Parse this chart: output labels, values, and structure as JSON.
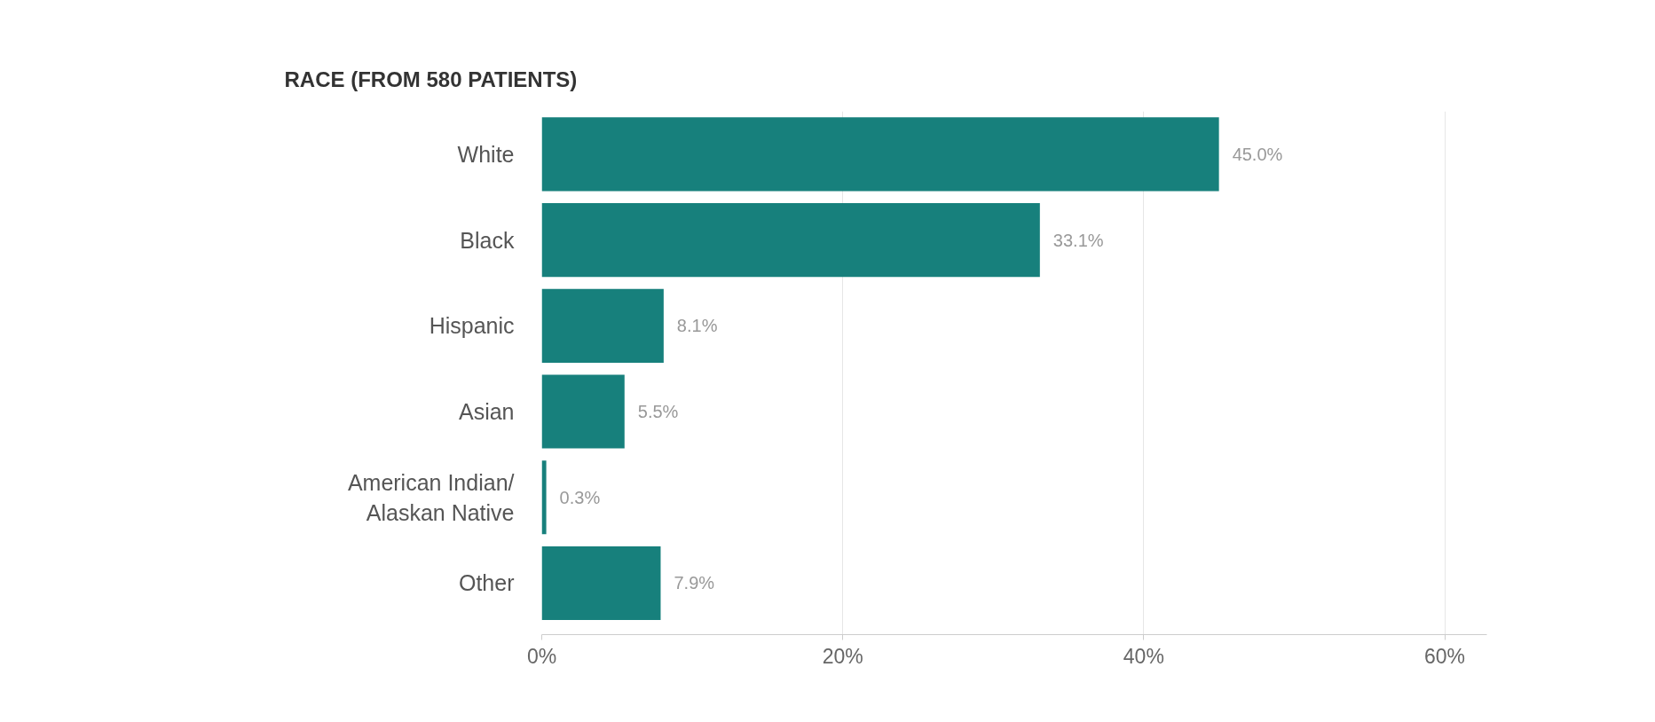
{
  "chart_data": {
    "type": "bar",
    "orientation": "horizontal",
    "title": "RACE (FROM 580 PATIENTS)",
    "categories": [
      "White",
      "Black",
      "Hispanic",
      "Asian",
      "American Indian/\nAlaskan Native",
      "Other"
    ],
    "values": [
      45.0,
      33.1,
      8.1,
      5.5,
      0.3,
      7.9
    ],
    "value_labels": [
      "45.0%",
      "33.1%",
      "8.1%",
      "5.5%",
      "0.3%",
      "7.9%"
    ],
    "color": "#17807c",
    "xlim": [
      0,
      62.8
    ],
    "xticks": [
      {
        "value": 0,
        "label": "0%"
      },
      {
        "value": 20,
        "label": "20%"
      },
      {
        "value": 40,
        "label": "40%"
      },
      {
        "value": 60,
        "label": "60%"
      }
    ],
    "grid": "x"
  }
}
